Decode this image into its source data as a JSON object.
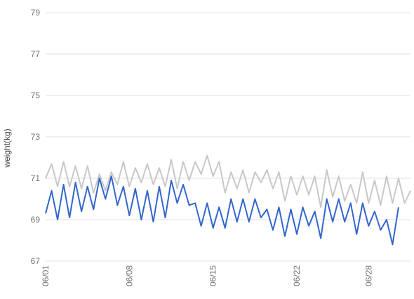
{
  "chart_data": {
    "type": "line",
    "ylabel": "weight(kg)",
    "ylim": [
      67,
      79
    ],
    "yticks": [
      67,
      69,
      71,
      73,
      75,
      77,
      79
    ],
    "grid": true,
    "x_tick_labels": [
      {
        "day": 1,
        "label": "06/01"
      },
      {
        "day": 8,
        "label": "06/08"
      },
      {
        "day": 15,
        "label": "06/15"
      },
      {
        "day": 22,
        "label": "06/22"
      },
      {
        "day": 28,
        "label": "06/28"
      }
    ],
    "series": [
      {
        "color": "#c8c8c8",
        "points": [
          [
            1.0,
            71.0
          ],
          [
            1.5,
            71.7
          ],
          [
            2.0,
            70.6
          ],
          [
            2.5,
            71.8
          ],
          [
            3.0,
            70.6
          ],
          [
            3.5,
            71.6
          ],
          [
            4.0,
            70.5
          ],
          [
            4.5,
            71.6
          ],
          [
            5.0,
            70.3
          ],
          [
            5.5,
            71.2
          ],
          [
            6.0,
            70.4
          ],
          [
            6.5,
            71.3
          ],
          [
            7.0,
            70.7
          ],
          [
            7.5,
            71.8
          ],
          [
            8.0,
            70.6
          ],
          [
            8.5,
            71.5
          ],
          [
            9.0,
            70.8
          ],
          [
            9.5,
            71.7
          ],
          [
            10.0,
            70.7
          ],
          [
            10.5,
            71.5
          ],
          [
            11.0,
            70.6
          ],
          [
            11.5,
            71.9
          ],
          [
            12.0,
            70.5
          ],
          [
            12.5,
            71.8
          ],
          [
            13.0,
            70.9
          ],
          [
            13.5,
            71.8
          ],
          [
            14.0,
            71.2
          ],
          [
            14.5,
            72.1
          ],
          [
            15.0,
            71.1
          ],
          [
            15.5,
            71.8
          ],
          [
            16.0,
            70.3
          ],
          [
            16.5,
            71.3
          ],
          [
            17.0,
            70.5
          ],
          [
            17.5,
            71.4
          ],
          [
            18.0,
            70.3
          ],
          [
            18.5,
            71.3
          ],
          [
            19.0,
            70.8
          ],
          [
            19.5,
            71.4
          ],
          [
            20.0,
            70.5
          ],
          [
            20.5,
            71.3
          ],
          [
            21.0,
            69.9
          ],
          [
            21.5,
            71.1
          ],
          [
            22.0,
            70.2
          ],
          [
            22.5,
            71.1
          ],
          [
            23.0,
            70.2
          ],
          [
            23.5,
            71.1
          ],
          [
            24.0,
            69.6
          ],
          [
            24.5,
            71.4
          ],
          [
            25.0,
            70.1
          ],
          [
            25.5,
            71.1
          ],
          [
            26.0,
            69.9
          ],
          [
            26.5,
            70.7
          ],
          [
            27.0,
            69.8
          ],
          [
            27.5,
            71.3
          ],
          [
            28.0,
            69.8
          ],
          [
            28.5,
            70.9
          ],
          [
            29.0,
            69.7
          ],
          [
            29.5,
            71.1
          ],
          [
            30.0,
            69.8
          ],
          [
            30.5,
            71.0
          ],
          [
            31.0,
            69.8
          ],
          [
            31.5,
            70.4
          ]
        ]
      },
      {
        "color": "#3366cc",
        "points": [
          [
            1.0,
            69.3
          ],
          [
            1.5,
            70.4
          ],
          [
            2.0,
            69.0
          ],
          [
            2.5,
            70.7
          ],
          [
            3.0,
            69.1
          ],
          [
            3.5,
            70.8
          ],
          [
            4.0,
            69.4
          ],
          [
            4.5,
            70.6
          ],
          [
            5.0,
            69.5
          ],
          [
            5.5,
            71.0
          ],
          [
            6.0,
            70.0
          ],
          [
            6.5,
            71.1
          ],
          [
            7.0,
            69.7
          ],
          [
            7.5,
            70.6
          ],
          [
            8.0,
            69.2
          ],
          [
            8.5,
            70.5
          ],
          [
            9.0,
            69.0
          ],
          [
            9.5,
            70.4
          ],
          [
            10.0,
            68.9
          ],
          [
            10.5,
            70.6
          ],
          [
            11.0,
            69.1
          ],
          [
            11.5,
            70.9
          ],
          [
            12.0,
            69.8
          ],
          [
            12.5,
            70.7
          ],
          [
            13.0,
            69.7
          ],
          [
            13.5,
            69.8
          ],
          [
            14.0,
            68.7
          ],
          [
            14.5,
            69.8
          ],
          [
            15.0,
            68.6
          ],
          [
            15.5,
            69.6
          ],
          [
            16.0,
            68.6
          ],
          [
            16.5,
            70.0
          ],
          [
            17.0,
            68.9
          ],
          [
            17.5,
            70.0
          ],
          [
            18.0,
            68.9
          ],
          [
            18.5,
            70.0
          ],
          [
            19.0,
            69.1
          ],
          [
            19.5,
            69.5
          ],
          [
            20.0,
            68.5
          ],
          [
            20.5,
            69.6
          ],
          [
            21.0,
            68.2
          ],
          [
            21.5,
            69.5
          ],
          [
            22.0,
            68.3
          ],
          [
            22.5,
            69.6
          ],
          [
            23.0,
            68.7
          ],
          [
            23.5,
            69.4
          ],
          [
            24.0,
            68.1
          ],
          [
            24.5,
            70.0
          ],
          [
            25.0,
            68.9
          ],
          [
            25.5,
            70.0
          ],
          [
            26.0,
            68.9
          ],
          [
            26.5,
            69.8
          ],
          [
            27.0,
            68.3
          ],
          [
            27.5,
            69.8
          ],
          [
            28.0,
            68.7
          ],
          [
            28.5,
            69.4
          ],
          [
            29.0,
            68.5
          ],
          [
            29.5,
            69.0
          ],
          [
            30.0,
            67.8
          ],
          [
            30.5,
            69.6
          ]
        ]
      }
    ]
  }
}
